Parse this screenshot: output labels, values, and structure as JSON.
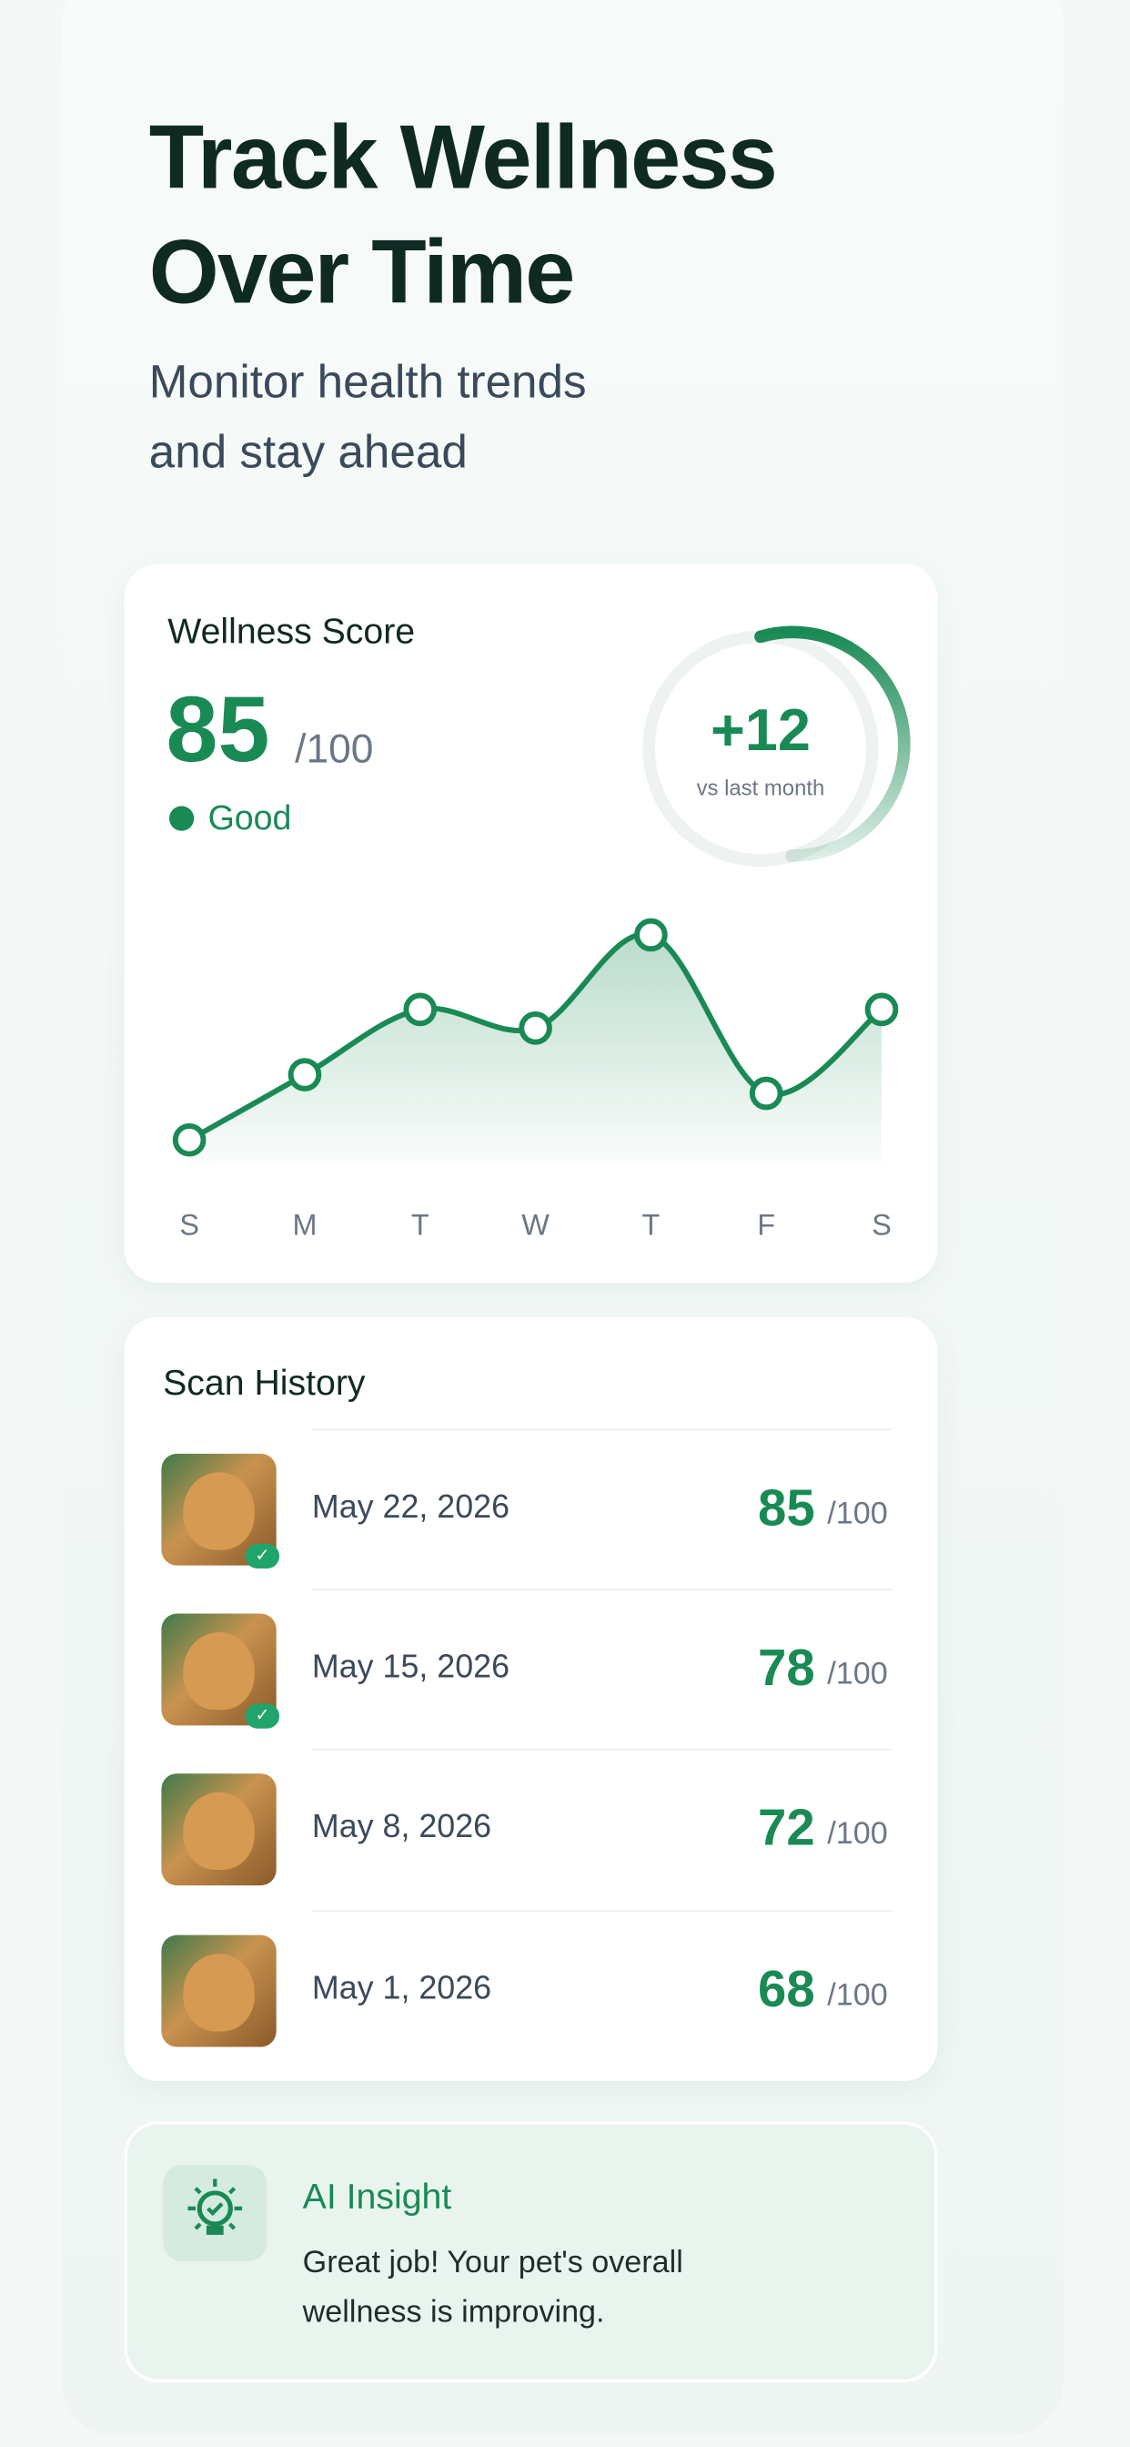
{
  "header": {
    "title_lines": [
      "Track Wellness",
      "Over Time"
    ],
    "subtitle_lines": [
      "Monitor health trends",
      "and stay ahead"
    ]
  },
  "wellness_card": {
    "title": "Wellness Score",
    "score": "85",
    "score_max": "/100",
    "status": "Good",
    "change": "+12",
    "change_label": "vs last month"
  },
  "chart_data": {
    "type": "line",
    "categories": [
      "S",
      "M",
      "T",
      "W",
      "T",
      "F",
      "S"
    ],
    "values": [
      66,
      73,
      80,
      78,
      88,
      71,
      80
    ],
    "color": "#1a8a55",
    "ylim": [
      60,
      90
    ]
  },
  "scan_history": {
    "title": "Scan History",
    "rows": [
      {
        "date": "May 22, 2026",
        "score": "85",
        "max": "/100"
      },
      {
        "date": "May 15, 2026",
        "score": "78",
        "max": "/100"
      },
      {
        "date": "May 8, 2026",
        "score": "72",
        "max": "/100"
      },
      {
        "date": "May 1, 2026",
        "score": "68",
        "max": "/100"
      }
    ]
  },
  "insight": {
    "title": "AI Insight",
    "text_lines": [
      "Great job! Your pet's overall",
      "wellness is improving."
    ]
  }
}
